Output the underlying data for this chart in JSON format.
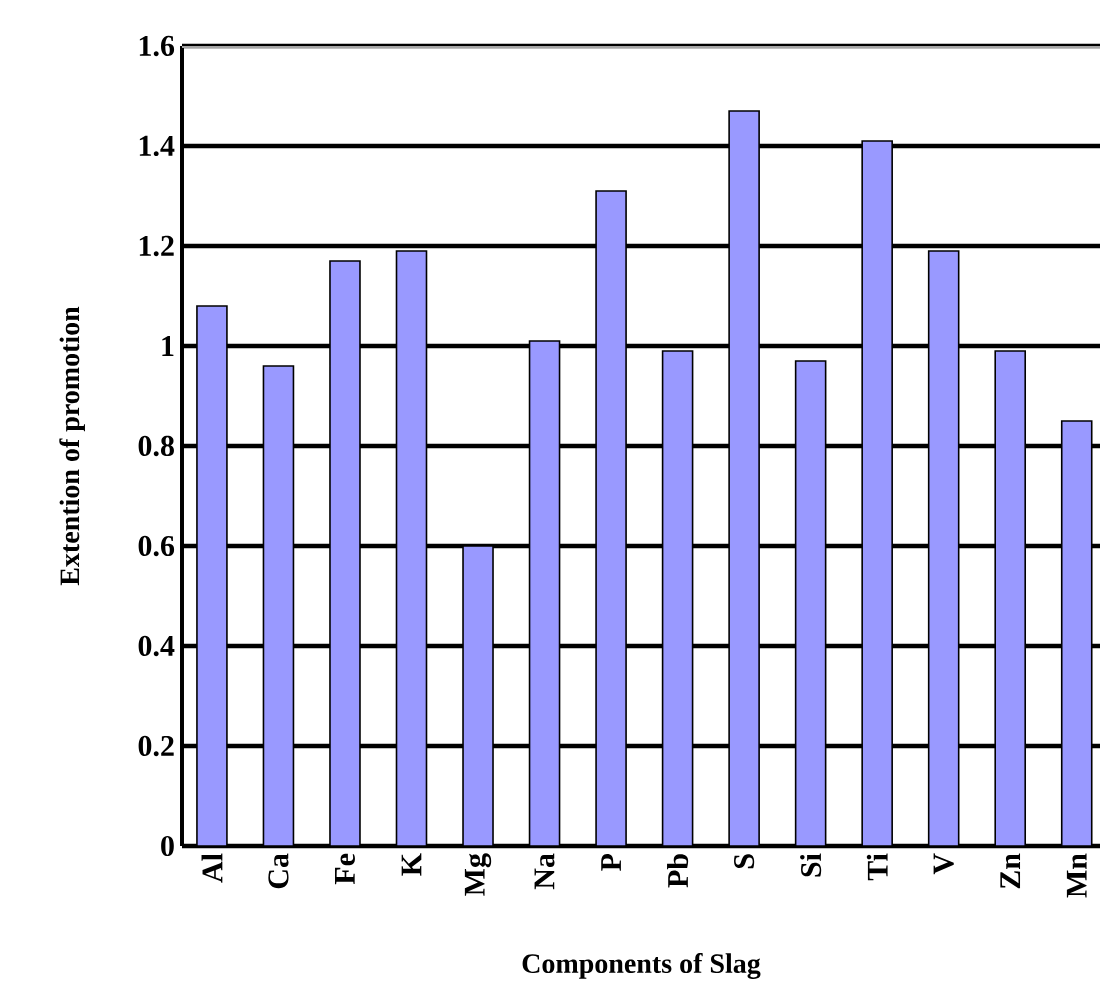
{
  "chart_data": {
    "type": "bar",
    "xlabel": "Components of Slag",
    "ylabel": "Extention of promotion",
    "categories": [
      "Al",
      "Ca",
      "Fe",
      "K",
      "Mg",
      "Na",
      "P",
      "Pb",
      "S",
      "Si",
      "Ti",
      "V",
      "Zn",
      "Mn"
    ],
    "values": [
      1.08,
      0.96,
      1.17,
      1.19,
      0.6,
      1.01,
      1.31,
      0.99,
      1.47,
      0.97,
      1.41,
      1.19,
      0.99,
      0.85
    ],
    "color": "#9999ff",
    "ylim": [
      0,
      1.6
    ],
    "yticks": [
      0,
      0.2,
      0.4,
      0.6,
      0.8,
      1,
      1.2,
      1.4,
      1.6
    ],
    "grid": "y"
  }
}
